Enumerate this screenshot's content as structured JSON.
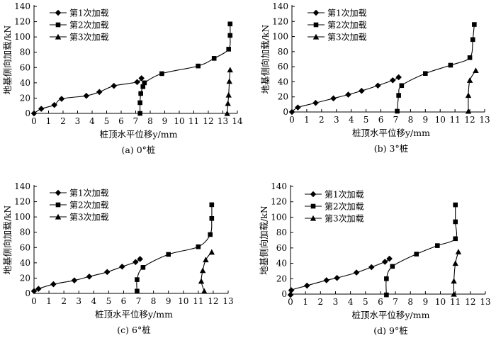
{
  "chart_data": [
    {
      "type": "line",
      "caption": "(a) 0°桩",
      "xlabel": "桩顶水平位移y/mm",
      "ylabel": "地基侧向加载/kN",
      "xlim": [
        0,
        14
      ],
      "ylim": [
        0,
        140
      ],
      "xticks": [
        "0",
        "1",
        "2",
        "3",
        "4",
        "5",
        "6",
        "7",
        "8",
        "9",
        "10",
        "11",
        "12",
        "13",
        "14"
      ],
      "yticks": [
        "0",
        "20",
        "40",
        "60",
        "80",
        "100",
        "120",
        "140"
      ],
      "legend": [
        "第1次加载",
        "第2次加载",
        "第3次加载"
      ],
      "series": [
        {
          "name": "第1次加载",
          "marker": "diamond",
          "x": [
            0.0,
            0.5,
            1.4,
            1.9,
            3.6,
            4.5,
            5.5,
            7.1,
            7.4
          ],
          "y": [
            0,
            6,
            11,
            19,
            23,
            28,
            36,
            41,
            46
          ]
        },
        {
          "name": "第2次加载",
          "marker": "square",
          "x": [
            7.3,
            7.3,
            7.35,
            7.5,
            7.6,
            8.8,
            11.3,
            12.4,
            13.4,
            13.5,
            13.5
          ],
          "y": [
            0,
            14,
            26,
            35,
            40,
            52,
            62,
            72,
            84,
            102,
            117
          ]
        },
        {
          "name": "第3次加载",
          "marker": "triangle",
          "x": [
            13.3,
            13.35,
            13.4,
            13.45,
            13.5
          ],
          "y": [
            0,
            13,
            24,
            42,
            57
          ]
        }
      ]
    },
    {
      "type": "line",
      "caption": "(b) 3°桩",
      "xlabel": "桩顶水平位移y/mm",
      "ylabel": "地基侧向加载/kN",
      "xlim": [
        0,
        13
      ],
      "ylim": [
        0,
        140
      ],
      "xticks": [
        "0",
        "1",
        "2",
        "3",
        "4",
        "5",
        "6",
        "7",
        "8",
        "9",
        "10",
        "11",
        "12",
        "13"
      ],
      "yticks": [
        "0",
        "20",
        "40",
        "60",
        "80",
        "100",
        "120",
        "140"
      ],
      "legend": [
        "第1次加载",
        "第2次加载",
        "第3次加载"
      ],
      "series": [
        {
          "name": "第1次加载",
          "marker": "diamond",
          "x": [
            0.0,
            0.4,
            1.6,
            2.8,
            3.8,
            4.7,
            5.8,
            6.8,
            7.2
          ],
          "y": [
            0,
            6,
            12,
            18,
            23,
            28,
            35,
            42,
            46
          ]
        },
        {
          "name": "第2次加载",
          "marker": "square",
          "x": [
            7.1,
            7.2,
            7.4,
            9.0,
            10.7,
            12.0,
            12.2,
            12.3
          ],
          "y": [
            1,
            22,
            35,
            51,
            62,
            72,
            96,
            116
          ]
        },
        {
          "name": "第3次加载",
          "marker": "triangle",
          "x": [
            11.9,
            11.9,
            12.0,
            12.4
          ],
          "y": [
            1,
            22,
            42,
            55
          ]
        }
      ]
    },
    {
      "type": "line",
      "caption": "(c) 6°桩",
      "xlabel": "桩顶水平位移y/mm",
      "ylabel": "地基侧向加载/kN",
      "xlim": [
        0,
        13
      ],
      "ylim": [
        0,
        140
      ],
      "xticks": [
        "0",
        "1",
        "2",
        "3",
        "4",
        "5",
        "6",
        "7",
        "8",
        "9",
        "10",
        "11",
        "12",
        "13"
      ],
      "yticks": [
        "0",
        "20",
        "40",
        "60",
        "80",
        "100",
        "120",
        "140"
      ],
      "legend": [
        "第1次加载",
        "第2次加载",
        "第3次加载"
      ],
      "series": [
        {
          "name": "第1次加载",
          "marker": "diamond",
          "x": [
            0.0,
            0.3,
            1.3,
            2.7,
            3.7,
            4.9,
            5.9,
            6.8,
            7.1
          ],
          "y": [
            3,
            6,
            12,
            17,
            22,
            28,
            35,
            41,
            45
          ]
        },
        {
          "name": "第2次加载",
          "marker": "square",
          "x": [
            6.9,
            6.9,
            7.3,
            9.0,
            11.0,
            11.8,
            11.9,
            11.9
          ],
          "y": [
            3,
            18,
            34,
            51,
            61,
            77,
            98,
            116
          ]
        },
        {
          "name": "第3次加载",
          "marker": "triangle",
          "x": [
            11.4,
            11.2,
            11.3,
            11.5,
            11.9
          ],
          "y": [
            3,
            16,
            30,
            44,
            54
          ]
        }
      ]
    },
    {
      "type": "line",
      "caption": "(d) 9°桩",
      "xlabel": "桩顶水平位移y/mm",
      "ylabel": "地基侧向加载/kN",
      "xlim": [
        0,
        13
      ],
      "ylim": [
        0,
        140
      ],
      "xticks": [
        "0",
        "1",
        "2",
        "3",
        "4",
        "5",
        "6",
        "7",
        "8",
        "9",
        "10",
        "11",
        "12",
        "13"
      ],
      "yticks": [
        "0",
        "20",
        "40",
        "60",
        "80",
        "100",
        "120",
        "140"
      ],
      "legend": [
        "第1次加载",
        "第2次加载",
        "第3次加载"
      ],
      "series": [
        {
          "name": "第1次加载",
          "marker": "diamond",
          "x": [
            0.0,
            0.05,
            1.1,
            2.4,
            3.1,
            4.4,
            5.4,
            6.3,
            6.6
          ],
          "y": [
            -1,
            5,
            11,
            18,
            21,
            28,
            35,
            42,
            46
          ]
        },
        {
          "name": "第2次加载",
          "marker": "square",
          "x": [
            6.4,
            6.4,
            6.8,
            8.4,
            9.8,
            11.0,
            11.0,
            11.0
          ],
          "y": [
            -1,
            20,
            36,
            52,
            63,
            72,
            94,
            116
          ]
        },
        {
          "name": "第3次加载",
          "marker": "triangle",
          "x": [
            10.9,
            10.9,
            11.0,
            11.2
          ],
          "y": [
            0,
            17,
            40,
            55
          ]
        }
      ]
    }
  ]
}
